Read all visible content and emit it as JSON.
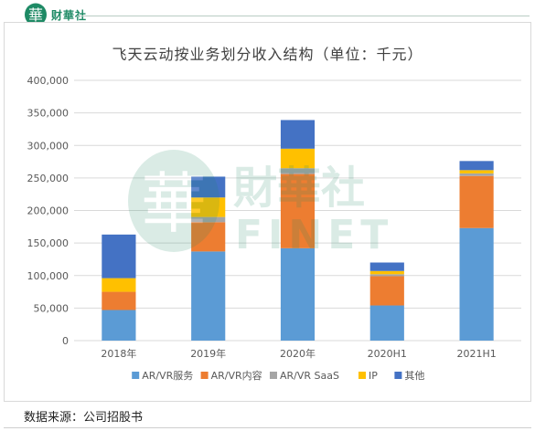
{
  "brand": {
    "seal_char": "華",
    "name": "财華社",
    "color": "#1e8a65"
  },
  "watermark": {
    "seal_char": "華",
    "cn": "財華社",
    "en": "FINET"
  },
  "source_note": "数据来源：公司招股书",
  "chart_data": {
    "type": "bar",
    "stacked": true,
    "title": "飞天云动按业务划分收入结构（单位：千元）",
    "categories": [
      "2018年",
      "2019年",
      "2020年",
      "2020H1",
      "2021H1"
    ],
    "ylim": [
      0,
      400000
    ],
    "yticks": [
      "0",
      "50,000",
      "100,000",
      "150,000",
      "200,000",
      "250,000",
      "300,000",
      "350,000",
      "400,000"
    ],
    "grid": true,
    "legend_position": "bottom",
    "series": [
      {
        "name": "AR/VR服务",
        "color": "#5b9bd5",
        "values": [
          47000,
          137000,
          142000,
          54000,
          173000
        ]
      },
      {
        "name": "AR/VR内容",
        "color": "#ed7d31",
        "values": [
          28000,
          45000,
          114000,
          45000,
          80000
        ]
      },
      {
        "name": "AR/VR SaaS",
        "color": "#a5a5a5",
        "values": [
          0,
          8000,
          9000,
          3000,
          4000
        ]
      },
      {
        "name": "IP",
        "color": "#ffc000",
        "values": [
          21000,
          30000,
          30000,
          5000,
          5000
        ]
      },
      {
        "name": "其他",
        "color": "#4472c4",
        "values": [
          67000,
          32000,
          44000,
          13000,
          14000
        ]
      }
    ]
  }
}
